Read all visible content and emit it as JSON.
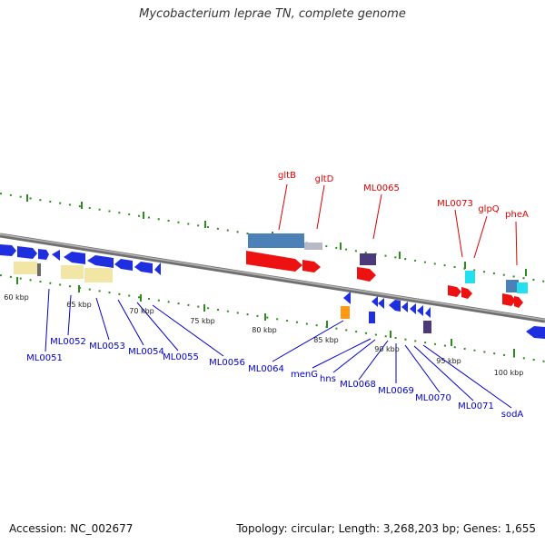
{
  "title": "Mycobacterium leprae TN, complete genome",
  "footer": {
    "accession": "Accession: NC_002677",
    "summary": "Topology: circular; Length: 3,268,203 bp; Genes: 1,655"
  },
  "colors": {
    "backbone": "#8a8a8a",
    "forward_gene": "#1f2fe0",
    "reverse_gene": "#ee1111",
    "label_red": "#dd0000",
    "label_blue": "#0000cc",
    "tick_green": "#2e8b1f",
    "pseudo": "#f2e6a6",
    "rna": "#4a82b8",
    "cyan": "#22e0ee",
    "orange": "#ff9a10",
    "dark_purple": "#4a3a7a"
  },
  "scale_labels": [
    "60 kbp",
    "65 kbp",
    "70 kbp",
    "75 kbp",
    "80 kbp",
    "85 kbp",
    "90 kbp",
    "95 kbp",
    "100 kbp"
  ],
  "upper_gene_labels": [
    "gltB",
    "gltD",
    "ML0065",
    "ML0073",
    "glpQ",
    "pheA"
  ],
  "lower_gene_labels": [
    "ML0051",
    "ML0052",
    "ML0053",
    "ML0054",
    "ML0055",
    "ML0056",
    "ML0064",
    "menG",
    "hns",
    "ML0068",
    "ML0069",
    "ML0070",
    "ML0071",
    "sodA"
  ]
}
